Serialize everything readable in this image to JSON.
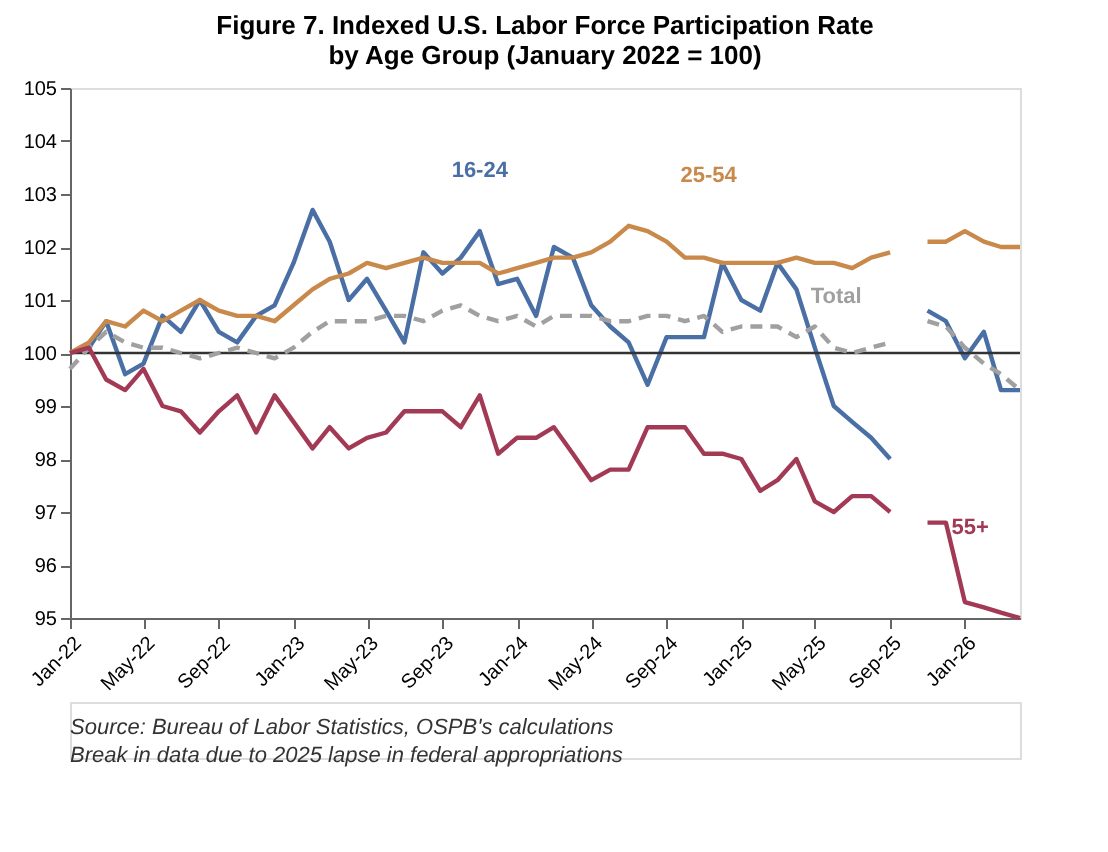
{
  "chart_data": {
    "type": "line",
    "title": [
      "Figure 7. Indexed U.S. Labor Force Participation Rate",
      "by Age Group (January 2022 = 100)"
    ],
    "x": [
      "2022-01",
      "2022-02",
      "2022-03",
      "2022-04",
      "2022-05",
      "2022-06",
      "2022-07",
      "2022-08",
      "2022-09",
      "2022-10",
      "2022-11",
      "2022-12",
      "2023-01",
      "2023-02",
      "2023-03",
      "2023-04",
      "2023-05",
      "2023-06",
      "2023-07",
      "2023-08",
      "2023-09",
      "2023-10",
      "2023-11",
      "2023-12",
      "2024-01",
      "2024-02",
      "2024-03",
      "2024-04",
      "2024-05",
      "2024-06",
      "2024-07",
      "2024-08",
      "2024-09",
      "2024-10",
      "2024-11",
      "2024-12",
      "2025-01",
      "2025-02",
      "2025-03",
      "2025-04",
      "2025-05",
      "2025-06",
      "2025-07",
      "2025-08",
      "2025-09",
      "2025-10",
      "2025-11",
      "2025-12",
      "2026-01",
      "2026-02",
      "2026-03",
      "2026-04"
    ],
    "series": [
      {
        "name": "16-24",
        "color": "#4a6fa5",
        "line_style": "solid",
        "values": [
          100,
          100.1,
          100.6,
          99.6,
          99.8,
          100.7,
          100.4,
          101.0,
          100.4,
          100.2,
          100.7,
          100.9,
          101.7,
          102.7,
          102.1,
          101.0,
          101.4,
          100.8,
          100.2,
          101.9,
          101.5,
          101.8,
          102.3,
          101.3,
          101.4,
          100.7,
          102.0,
          101.8,
          100.9,
          100.5,
          100.2,
          99.4,
          100.3,
          100.3,
          100.3,
          101.7,
          101.0,
          100.8,
          101.7,
          101.2,
          100.1,
          99.0,
          98.7,
          98.4,
          98.0,
          null,
          100.8,
          100.6,
          99.9,
          100.4,
          99.3,
          99.3
        ]
      },
      {
        "name": "25-54",
        "color": "#c8894a",
        "line_style": "solid",
        "values": [
          100,
          100.2,
          100.6,
          100.5,
          100.8,
          100.6,
          100.8,
          101.0,
          100.8,
          100.7,
          100.7,
          100.6,
          100.9,
          101.2,
          101.4,
          101.5,
          101.7,
          101.6,
          101.7,
          101.8,
          101.7,
          101.7,
          101.7,
          101.5,
          101.6,
          101.7,
          101.8,
          101.8,
          101.9,
          102.1,
          102.4,
          102.3,
          102.1,
          101.8,
          101.8,
          101.7,
          101.7,
          101.7,
          101.7,
          101.8,
          101.7,
          101.7,
          101.6,
          101.8,
          101.9,
          null,
          102.1,
          102.1,
          102.3,
          102.1,
          102.0,
          102.0
        ]
      },
      {
        "name": "Total",
        "color": "#a0a0a0",
        "line_style": "dashed",
        "values": [
          99.7,
          100.1,
          100.4,
          100.2,
          100.1,
          100.1,
          100.0,
          99.9,
          100.0,
          100.1,
          100.0,
          99.9,
          100.1,
          100.4,
          100.6,
          100.6,
          100.6,
          100.7,
          100.7,
          100.6,
          100.8,
          100.9,
          100.7,
          100.6,
          100.7,
          100.5,
          100.7,
          100.7,
          100.7,
          100.6,
          100.6,
          100.7,
          100.7,
          100.6,
          100.7,
          100.4,
          100.5,
          100.5,
          100.5,
          100.3,
          100.5,
          100.1,
          100.0,
          100.1,
          100.2,
          null,
          100.6,
          100.5,
          100.1,
          99.8,
          99.6,
          99.3
        ]
      },
      {
        "name": "55+",
        "color": "#a33a55",
        "line_style": "solid",
        "values": [
          100,
          100.1,
          99.5,
          99.3,
          99.7,
          99.0,
          98.9,
          98.5,
          98.9,
          99.2,
          98.5,
          99.2,
          98.7,
          98.2,
          98.6,
          98.2,
          98.4,
          98.5,
          98.9,
          98.9,
          98.9,
          98.6,
          99.2,
          98.1,
          98.4,
          98.4,
          98.6,
          98.1,
          97.6,
          97.8,
          97.8,
          98.6,
          98.6,
          98.6,
          98.1,
          98.1,
          98.0,
          97.4,
          97.6,
          98.0,
          97.2,
          97.0,
          97.3,
          97.3,
          97.0,
          null,
          96.8,
          96.8,
          95.3,
          95.2,
          95.1,
          95.0
        ]
      }
    ],
    "xlim": [
      "2022-01",
      "2026-04"
    ],
    "xticks": [
      {
        "value": "2022-01",
        "label": "Jan-22"
      },
      {
        "value": "2022-05",
        "label": "May-22"
      },
      {
        "value": "2022-09",
        "label": "Sep-22"
      },
      {
        "value": "2023-01",
        "label": "Jan-23"
      },
      {
        "value": "2023-05",
        "label": "May-23"
      },
      {
        "value": "2023-09",
        "label": "Sep-23"
      },
      {
        "value": "2024-01",
        "label": "Jan-24"
      },
      {
        "value": "2024-05",
        "label": "May-24"
      },
      {
        "value": "2024-09",
        "label": "Sep-24"
      },
      {
        "value": "2025-01",
        "label": "Jan-25"
      },
      {
        "value": "2025-05",
        "label": "May-25"
      },
      {
        "value": "2025-09",
        "label": "Sep-25"
      },
      {
        "value": "2026-01",
        "label": "Jan-26"
      }
    ],
    "ylim": [
      95,
      105
    ],
    "yticks": [
      95,
      96,
      97,
      98,
      99,
      100,
      101,
      102,
      103,
      104,
      105
    ],
    "ref_lines": [
      {
        "axis": "y",
        "value": 100,
        "color": "#333333"
      }
    ],
    "grid": false,
    "legend": false,
    "annotations": [
      "Source: Bureau of Labor Statistics, OSPB's calculations",
      "Break in data due to 2025 lapse in federal appropriations"
    ]
  }
}
